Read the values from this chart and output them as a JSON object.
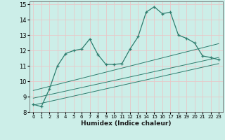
{
  "xlabel": "Humidex (Indice chaleur)",
  "background_color": "#cceee8",
  "grid_color": "#e8c8c8",
  "line_color": "#2e7d6e",
  "xlim": [
    -0.5,
    23.5
  ],
  "ylim": [
    8,
    15.2
  ],
  "yticks": [
    8,
    9,
    10,
    11,
    12,
    13,
    14,
    15
  ],
  "xticks": [
    0,
    1,
    2,
    3,
    4,
    5,
    6,
    7,
    8,
    9,
    10,
    11,
    12,
    13,
    14,
    15,
    16,
    17,
    18,
    19,
    20,
    21,
    22,
    23
  ],
  "main_x": [
    0,
    1,
    2,
    3,
    4,
    5,
    6,
    7,
    8,
    9,
    10,
    11,
    12,
    13,
    14,
    15,
    16,
    17,
    18,
    19,
    20,
    21,
    22,
    23
  ],
  "main_y": [
    8.5,
    8.35,
    9.5,
    11.0,
    11.8,
    12.0,
    12.1,
    12.75,
    11.75,
    11.1,
    11.1,
    11.15,
    12.1,
    12.9,
    14.5,
    14.85,
    14.4,
    14.5,
    13.0,
    12.8,
    12.5,
    11.65,
    11.55,
    11.4
  ],
  "reg_lines": [
    {
      "x": [
        0,
        23
      ],
      "y": [
        8.45,
        11.15
      ]
    },
    {
      "x": [
        0,
        23
      ],
      "y": [
        8.9,
        11.55
      ]
    },
    {
      "x": [
        0,
        23
      ],
      "y": [
        9.4,
        12.45
      ]
    }
  ]
}
